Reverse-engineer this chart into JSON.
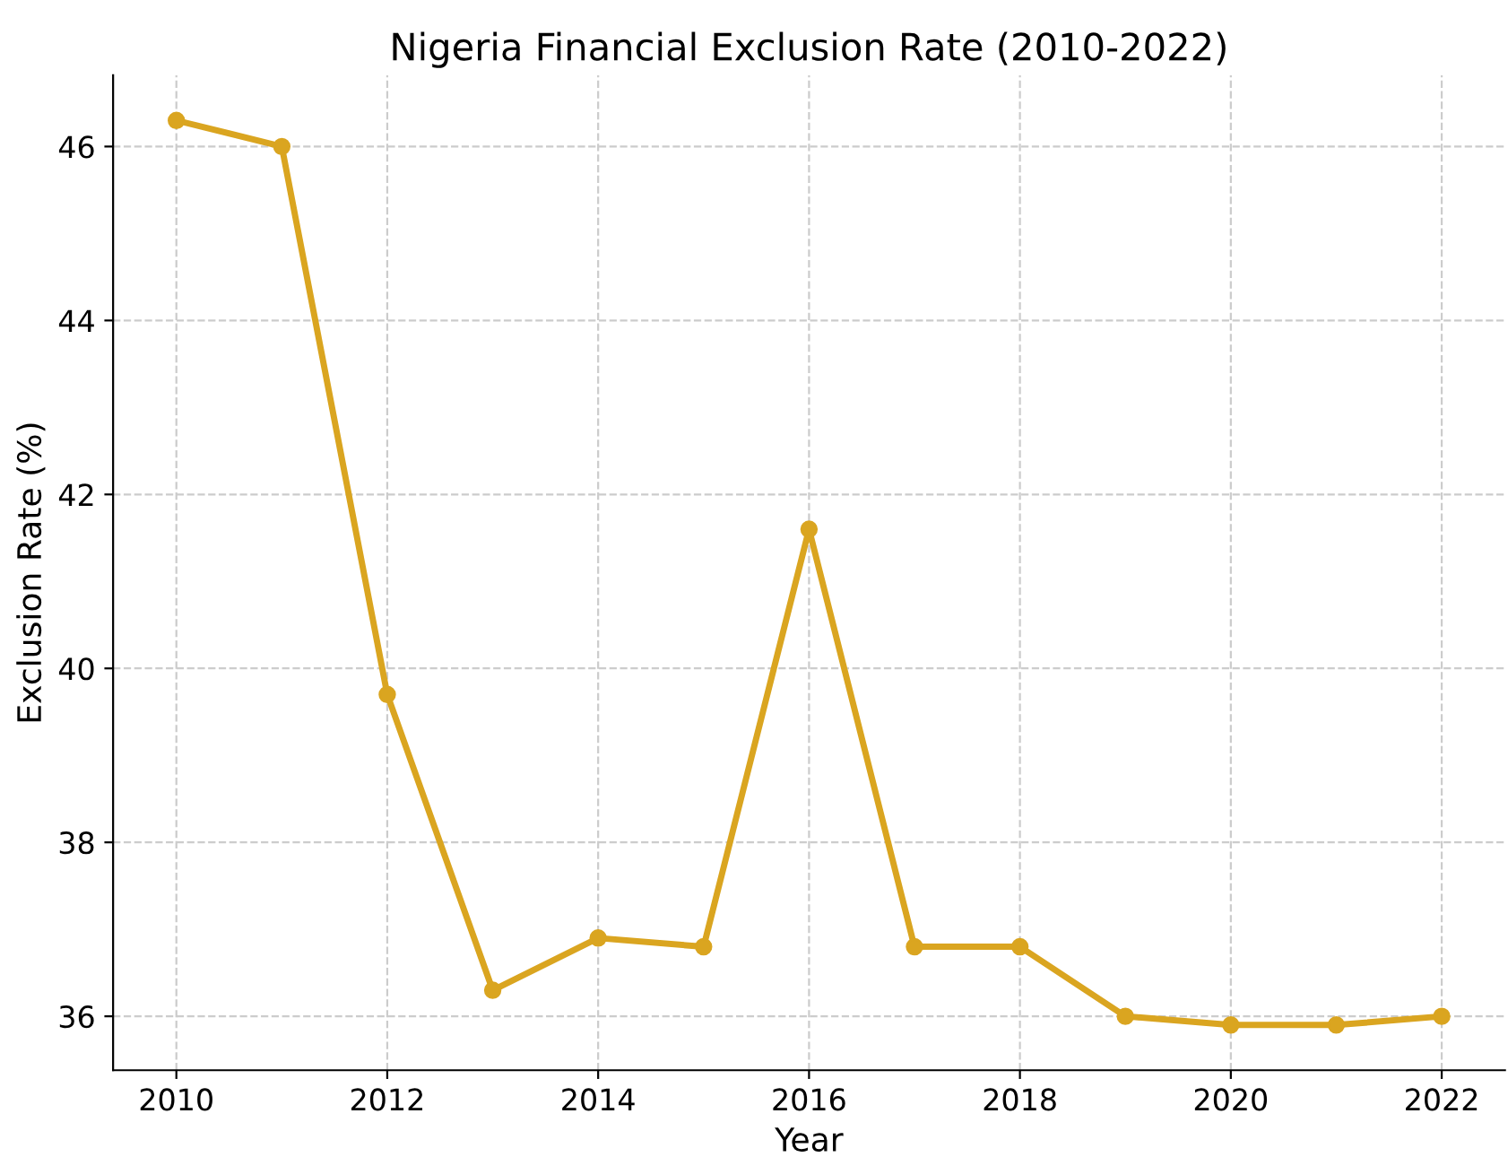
{
  "chart_data": {
    "type": "line",
    "title": "Nigeria Financial Exclusion Rate (2010-2022)",
    "xlabel": "Year",
    "ylabel": "Exclusion Rate (%)",
    "x": [
      2010,
      2011,
      2012,
      2013,
      2014,
      2015,
      2016,
      2017,
      2018,
      2019,
      2020,
      2021,
      2022
    ],
    "series": [
      {
        "color": "#daa520",
        "values": [
          46.3,
          46.0,
          39.7,
          36.3,
          36.9,
          36.8,
          41.6,
          36.8,
          36.8,
          36.0,
          35.9,
          35.9,
          36.0
        ]
      }
    ],
    "xlim": [
      2009.4,
      2022.6
    ],
    "ylim": [
      35.38,
      46.82
    ],
    "xticks": [
      2010,
      2012,
      2014,
      2016,
      2018,
      2020,
      2022
    ],
    "yticks": [
      36,
      38,
      40,
      42,
      44,
      46
    ],
    "grid": true,
    "marker": "circle",
    "line_style": "solid"
  }
}
